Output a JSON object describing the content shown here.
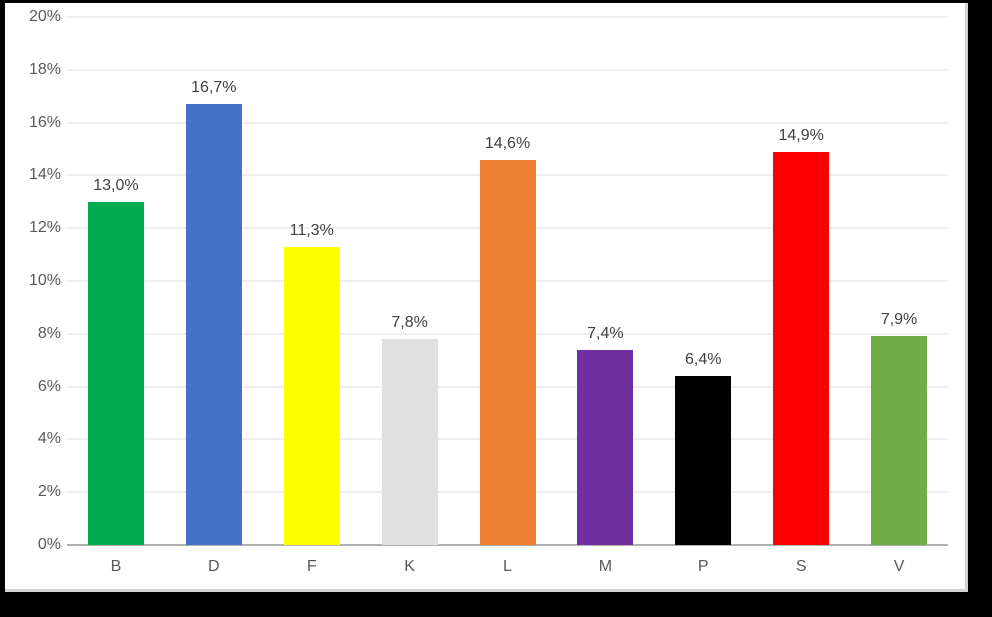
{
  "chart_data": {
    "type": "bar",
    "categories": [
      "B",
      "D",
      "F",
      "K",
      "L",
      "M",
      "P",
      "S",
      "V"
    ],
    "values": [
      13.0,
      16.7,
      11.3,
      7.8,
      14.6,
      7.4,
      6.4,
      14.9,
      7.9
    ],
    "data_labels": [
      "13,0%",
      "16,7%",
      "11,3%",
      "7,8%",
      "14,6%",
      "7,4%",
      "6,4%",
      "14,9%",
      "7,9%"
    ],
    "bar_colors": [
      "#00AB50",
      "#4472C4",
      "#FFFF00",
      "#E0E0E0",
      "#ED7D31",
      "#7030A0",
      "#000000",
      "#FF0000",
      "#70AD47"
    ],
    "title": "",
    "xlabel": "",
    "ylabel": "",
    "ylim": [
      0,
      20
    ],
    "ytick_step": 2,
    "ytick_labels": [
      "0%",
      "2%",
      "4%",
      "6%",
      "8%",
      "10%",
      "12%",
      "14%",
      "16%",
      "18%",
      "20%"
    ],
    "grid": true,
    "legend": false,
    "decimal_separator": ","
  },
  "style": {
    "background_color": "#000000",
    "panel_color": "#FFFFFF",
    "gridline_color": "#EEEEEE",
    "axis_line_color": "#B0B0B0",
    "tick_label_color": "#595959",
    "data_label_color": "#404040"
  }
}
